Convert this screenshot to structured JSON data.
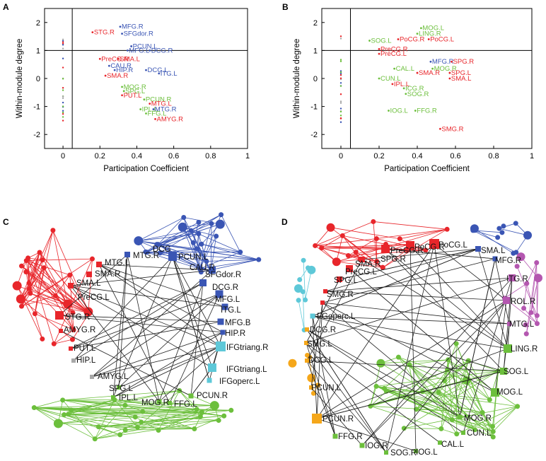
{
  "colors": {
    "red": "#e8262b",
    "blue": "#3a55b4",
    "green": "#6cbf3c",
    "cyan": "#5ec8d8",
    "orange": "#f5a71a",
    "purple": "#b457b0",
    "gray": "#a8a8a8",
    "edge": "#222222"
  },
  "chart_data": [
    {
      "panel": "A",
      "type": "scatter",
      "xlabel": "Participation Coefficient",
      "ylabel": "Within-module degree",
      "xlim": [
        -0.1,
        1.0
      ],
      "ylim": [
        -2.5,
        2.5
      ],
      "xticks": [
        0,
        0.2,
        0.4,
        0.6,
        0.8,
        1
      ],
      "xtick_labels": [
        "0",
        "0.2",
        "0.4",
        "0.6",
        "0.8",
        "1"
      ],
      "yticks": [
        2,
        1,
        0,
        -1,
        -2
      ],
      "ytick_labels": [
        "2",
        "1",
        "0",
        "-1",
        "-2"
      ],
      "hline": 1,
      "vline": 0.05,
      "labeled_points": [
        {
          "label": "MFG.R",
          "x": 0.31,
          "y": 1.85,
          "color": "blue"
        },
        {
          "label": "SFGdor.R",
          "x": 0.32,
          "y": 1.6,
          "color": "blue"
        },
        {
          "label": "STG.R",
          "x": 0.16,
          "y": 1.65,
          "color": "red"
        },
        {
          "label": "PCUN.L",
          "x": 0.37,
          "y": 1.15,
          "color": "blue"
        },
        {
          "label": "MFG.L",
          "x": 0.35,
          "y": 1.0,
          "color": "blue"
        },
        {
          "label": "DCG.R",
          "x": 0.47,
          "y": 1.0,
          "color": "blue"
        },
        {
          "label": "PreCG.R",
          "x": 0.2,
          "y": 0.7,
          "color": "red"
        },
        {
          "label": "SMA.L",
          "x": 0.3,
          "y": 0.7,
          "color": "red"
        },
        {
          "label": "CAU.R",
          "x": 0.25,
          "y": 0.45,
          "color": "blue"
        },
        {
          "label": "HIP.R",
          "x": 0.28,
          "y": 0.3,
          "color": "blue"
        },
        {
          "label": "DCG.L",
          "x": 0.45,
          "y": 0.3,
          "color": "blue"
        },
        {
          "label": "ITG.L",
          "x": 0.52,
          "y": 0.18,
          "color": "blue"
        },
        {
          "label": "SMA.R",
          "x": 0.23,
          "y": 0.1,
          "color": "red"
        },
        {
          "label": "MOG.R",
          "x": 0.32,
          "y": -0.3,
          "color": "green"
        },
        {
          "label": "SPG.L",
          "x": 0.33,
          "y": -0.45,
          "color": "green"
        },
        {
          "label": "PUT.L",
          "x": 0.32,
          "y": -0.6,
          "color": "red"
        },
        {
          "label": "PCUN.R",
          "x": 0.44,
          "y": -0.75,
          "color": "green"
        },
        {
          "label": "MTG.L",
          "x": 0.47,
          "y": -0.9,
          "color": "red"
        },
        {
          "label": "IPL.L",
          "x": 0.42,
          "y": -1.1,
          "color": "green"
        },
        {
          "label": "MTG.R",
          "x": 0.49,
          "y": -1.1,
          "color": "blue"
        },
        {
          "label": "FFG.L",
          "x": 0.45,
          "y": -1.25,
          "color": "green"
        },
        {
          "label": "AMYG.R",
          "x": 0.5,
          "y": -1.45,
          "color": "red"
        }
      ]
    },
    {
      "panel": "B",
      "type": "scatter",
      "xlabel": "Participation Coefficient",
      "ylabel": "Within-module degree",
      "xlim": [
        -0.1,
        1.0
      ],
      "ylim": [
        -2.5,
        2.5
      ],
      "xticks": [
        0,
        0.2,
        0.4,
        0.6,
        0.8,
        1
      ],
      "xtick_labels": [
        "0",
        "0.2",
        "0.4",
        "0.6",
        "0.8",
        "1"
      ],
      "yticks": [
        2,
        1,
        0,
        -1,
        -2
      ],
      "ytick_labels": [
        "2",
        "1",
        "0",
        "-1",
        "-2"
      ],
      "hline": 1,
      "vline": 0.05,
      "labeled_points": [
        {
          "label": "MOG.L",
          "x": 0.42,
          "y": 1.8,
          "color": "green"
        },
        {
          "label": "LING.R",
          "x": 0.4,
          "y": 1.6,
          "color": "green"
        },
        {
          "label": "SOG.L",
          "x": 0.15,
          "y": 1.35,
          "color": "green"
        },
        {
          "label": "PoCG.R",
          "x": 0.3,
          "y": 1.4,
          "color": "red"
        },
        {
          "label": "PoCG.L",
          "x": 0.46,
          "y": 1.4,
          "color": "red"
        },
        {
          "label": "PreCG.R",
          "x": 0.2,
          "y": 1.05,
          "color": "red"
        },
        {
          "label": "PreCG.L",
          "x": 0.2,
          "y": 0.88,
          "color": "red"
        },
        {
          "label": "MFG.R",
          "x": 0.47,
          "y": 0.6,
          "color": "blue"
        },
        {
          "label": "SPG.R",
          "x": 0.58,
          "y": 0.6,
          "color": "red"
        },
        {
          "label": "CAL.L",
          "x": 0.28,
          "y": 0.35,
          "color": "green"
        },
        {
          "label": "MOG.R",
          "x": 0.48,
          "y": 0.35,
          "color": "green"
        },
        {
          "label": "SMA.R",
          "x": 0.4,
          "y": 0.2,
          "color": "red"
        },
        {
          "label": "SPG.L",
          "x": 0.57,
          "y": 0.2,
          "color": "red"
        },
        {
          "label": "SMA.L",
          "x": 0.57,
          "y": 0.0,
          "color": "red"
        },
        {
          "label": "CUN.L",
          "x": 0.2,
          "y": 0.0,
          "color": "green"
        },
        {
          "label": "IPL.L",
          "x": 0.27,
          "y": -0.2,
          "color": "red"
        },
        {
          "label": "ICG.R",
          "x": 0.33,
          "y": -0.35,
          "color": "green"
        },
        {
          "label": "SOG.R",
          "x": 0.34,
          "y": -0.55,
          "color": "green"
        },
        {
          "label": "IOG.L",
          "x": 0.25,
          "y": -1.15,
          "color": "green"
        },
        {
          "label": "FFG.R",
          "x": 0.39,
          "y": -1.15,
          "color": "green"
        },
        {
          "label": "SMG.R",
          "x": 0.52,
          "y": -1.8,
          "color": "red"
        }
      ]
    }
  ],
  "networks": {
    "C": {
      "panel": "C",
      "labels": [
        {
          "text": "MTG.R",
          "color": "blue"
        },
        {
          "text": "DCG",
          "color": "blue"
        },
        {
          "text": "PCUN.L",
          "color": "blue"
        },
        {
          "text": "MTG.L",
          "color": "red"
        },
        {
          "text": "CAU.R",
          "color": "blue"
        },
        {
          "text": "SMA.R",
          "color": "red"
        },
        {
          "text": "SFGdor.R",
          "color": "blue"
        },
        {
          "text": "SMA.L",
          "color": "red"
        },
        {
          "text": "DCG.R",
          "color": "blue"
        },
        {
          "text": "PreCG.L",
          "color": "red"
        },
        {
          "text": "MFG.L",
          "color": "blue"
        },
        {
          "text": "ITG.L",
          "color": "blue"
        },
        {
          "text": "STG.R",
          "color": "red"
        },
        {
          "text": "MFG.B",
          "color": "blue"
        },
        {
          "text": "AMYG.R",
          "color": "red"
        },
        {
          "text": "HIP.R",
          "color": "blue"
        },
        {
          "text": "IFGtriang.R",
          "color": "cyan"
        },
        {
          "text": "PUT.L",
          "color": "red"
        },
        {
          "text": "HIP.L",
          "color": "gray"
        },
        {
          "text": "IFGtriang.L",
          "color": "cyan"
        },
        {
          "text": "AMYG.L",
          "color": "gray"
        },
        {
          "text": "IFGoperc.L",
          "color": "cyan"
        },
        {
          "text": "SPG.L",
          "color": "green"
        },
        {
          "text": "PCUN.R",
          "color": "green"
        },
        {
          "text": "IPL.L",
          "color": "green"
        },
        {
          "text": "MOG.R",
          "color": "green"
        },
        {
          "text": "FFG.L",
          "color": "green"
        }
      ]
    },
    "D": {
      "panel": "D",
      "labels": [
        {
          "text": "PoCG.L",
          "color": "red"
        },
        {
          "text": "PreCG.R",
          "color": "red"
        },
        {
          "text": "PoCG.R",
          "color": "red"
        },
        {
          "text": "SMA.L",
          "color": "blue"
        },
        {
          "text": "SPG.R",
          "color": "red"
        },
        {
          "text": "MFG.R",
          "color": "blue"
        },
        {
          "text": "SMA.R",
          "color": "red"
        },
        {
          "text": "PreCG.L",
          "color": "red"
        },
        {
          "text": "SPG.L",
          "color": "red"
        },
        {
          "text": "ITG.R",
          "color": "purple"
        },
        {
          "text": "SMG.R",
          "color": "red"
        },
        {
          "text": "ROL.R",
          "color": "purple"
        },
        {
          "text": "FGoperc.L",
          "color": "cyan"
        },
        {
          "text": "MTG.L",
          "color": "purple"
        },
        {
          "text": "DCG.R",
          "color": "orange"
        },
        {
          "text": "SMG.L",
          "color": "orange"
        },
        {
          "text": "LING.R",
          "color": "green"
        },
        {
          "text": "DCG.L",
          "color": "orange"
        },
        {
          "text": "SOG.L",
          "color": "green"
        },
        {
          "text": "PCUN.L",
          "color": "orange"
        },
        {
          "text": "MOG.L",
          "color": "green"
        },
        {
          "text": "PCUN.R",
          "color": "orange"
        },
        {
          "text": "MOG.R",
          "color": "green"
        },
        {
          "text": "CUN.L",
          "color": "green"
        },
        {
          "text": "FFG.R",
          "color": "green"
        },
        {
          "text": "IOG.R",
          "color": "green"
        },
        {
          "text": "CAL.L",
          "color": "green"
        },
        {
          "text": "SOG.R",
          "color": "green"
        },
        {
          "text": "IOG.L",
          "color": "green"
        }
      ]
    }
  }
}
